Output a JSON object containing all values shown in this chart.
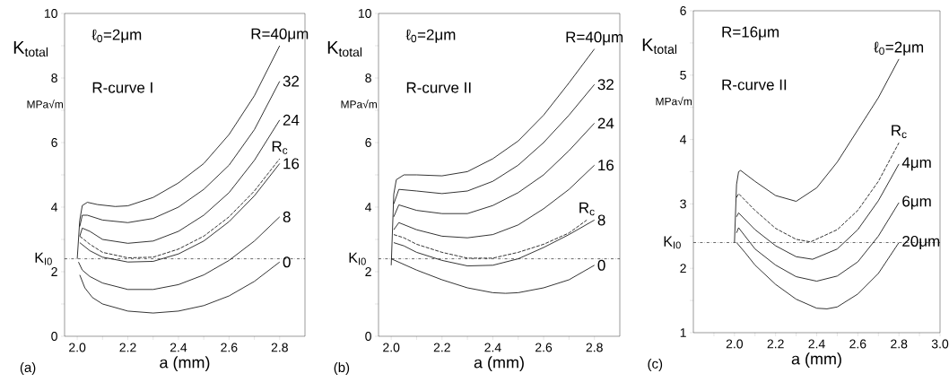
{
  "chart_data": [
    {
      "type": "line",
      "xlabel": "a    (mm)",
      "ylabel": "K$_{total}$",
      "annotations": [
        "ℓ$_{0}$=2μm",
        "R-curve I",
        "MPa√m",
        "(a)"
      ],
      "xlim": [
        1.95,
        2.9
      ],
      "ylim": [
        0,
        10
      ],
      "xticks": [
        {
          "value": 2.0,
          "label": "2.0"
        },
        {
          "value": 2.1,
          "label": null
        },
        {
          "value": 2.2,
          "label": "2.2"
        },
        {
          "value": 2.3,
          "label": null
        },
        {
          "value": 2.4,
          "label": "2.4"
        },
        {
          "value": 2.5,
          "label": null
        },
        {
          "value": 2.6,
          "label": "2.6"
        },
        {
          "value": 2.7,
          "label": null
        },
        {
          "value": 2.8,
          "label": "2.8"
        }
      ],
      "yticks": [
        0,
        {
          "value": 1,
          "label": null
        },
        2,
        {
          "value": 3,
          "label": null
        },
        4,
        {
          "value": 5,
          "label": null
        },
        6,
        {
          "value": 7,
          "label": null
        },
        8,
        {
          "value": 9,
          "label": null
        },
        10
      ],
      "ref_lines": [
        {
          "axis": "y",
          "value": 2.4,
          "label": "K$_{I0}$",
          "line_style": "dashdot",
          "color": "#000000"
        }
      ],
      "series": [
        {
          "name": "R=40μm",
          "color": "#000000",
          "x": [
            2.0,
            2.01,
            2.02,
            2.04,
            2.08,
            2.15,
            2.2,
            2.3,
            2.4,
            2.5,
            2.6,
            2.7,
            2.8
          ],
          "values": [
            2.4,
            3.6,
            4.05,
            4.15,
            4.08,
            4.02,
            4.04,
            4.3,
            4.75,
            5.35,
            6.25,
            7.45,
            9.0
          ]
        },
        {
          "name": "32",
          "color": "#000000",
          "x": [
            2.01,
            2.02,
            2.04,
            2.1,
            2.2,
            2.3,
            2.4,
            2.5,
            2.6,
            2.7,
            2.8
          ],
          "values": [
            3.4,
            3.75,
            3.75,
            3.6,
            3.52,
            3.65,
            4.0,
            4.55,
            5.3,
            6.4,
            7.9
          ]
        },
        {
          "name": "24",
          "color": "#000000",
          "x": [
            2.01,
            2.02,
            2.05,
            2.1,
            2.2,
            2.3,
            2.4,
            2.5,
            2.6,
            2.7,
            2.8
          ],
          "values": [
            3.1,
            3.35,
            3.25,
            3.0,
            2.88,
            2.95,
            3.25,
            3.75,
            4.45,
            5.45,
            6.7
          ]
        },
        {
          "name": "R$_{c}$",
          "color": "#000000",
          "line_style": "dashed",
          "x": [
            2.01,
            2.05,
            2.1,
            2.2,
            2.3,
            2.4,
            2.5,
            2.6,
            2.7,
            2.8
          ],
          "values": [
            3.1,
            2.85,
            2.6,
            2.43,
            2.45,
            2.7,
            3.1,
            3.7,
            4.5,
            5.5
          ]
        },
        {
          "name": "16",
          "color": "#000000",
          "x": [
            2.01,
            2.05,
            2.1,
            2.2,
            2.3,
            2.4,
            2.5,
            2.6,
            2.7,
            2.8
          ],
          "values": [
            2.9,
            2.65,
            2.45,
            2.3,
            2.32,
            2.55,
            2.95,
            3.55,
            4.35,
            5.35
          ]
        },
        {
          "name": "8",
          "color": "#000000",
          "x": [
            2.005,
            2.02,
            2.05,
            2.1,
            2.2,
            2.3,
            2.4,
            2.5,
            2.6,
            2.7,
            2.8
          ],
          "values": [
            2.3,
            2.05,
            1.85,
            1.65,
            1.45,
            1.45,
            1.6,
            1.9,
            2.35,
            2.95,
            3.7
          ]
        },
        {
          "name": "0",
          "color": "#000000",
          "x": [
            2.01,
            2.03,
            2.06,
            2.1,
            2.2,
            2.3,
            2.4,
            2.5,
            2.6,
            2.7,
            2.8
          ],
          "values": [
            1.9,
            1.5,
            1.2,
            1.0,
            0.78,
            0.72,
            0.78,
            0.95,
            1.25,
            1.7,
            2.3
          ]
        }
      ]
    },
    {
      "type": "line",
      "xlabel": "a    (mm)",
      "ylabel": "K$_{total}$",
      "annotations": [
        "ℓ$_{0}$=2μm",
        "R-curve II",
        "MPa√m",
        "(b)"
      ],
      "xlim": [
        1.95,
        2.9
      ],
      "ylim": [
        0,
        10
      ],
      "xticks": [
        {
          "value": 2.0,
          "label": "2.0"
        },
        {
          "value": 2.1,
          "label": null
        },
        {
          "value": 2.2,
          "label": "2.2"
        },
        {
          "value": 2.3,
          "label": null
        },
        {
          "value": 2.4,
          "label": "2.4"
        },
        {
          "value": 2.5,
          "label": null
        },
        {
          "value": 2.6,
          "label": "2.6"
        },
        {
          "value": 2.7,
          "label": null
        },
        {
          "value": 2.8,
          "label": "2.8"
        }
      ],
      "yticks": [
        0,
        {
          "value": 1,
          "label": null
        },
        2,
        {
          "value": 3,
          "label": null
        },
        4,
        {
          "value": 5,
          "label": null
        },
        6,
        {
          "value": 7,
          "label": null
        },
        8,
        {
          "value": 9,
          "label": null
        },
        10
      ],
      "ref_lines": [
        {
          "axis": "y",
          "value": 2.4,
          "label": "K$_{I0}$",
          "line_style": "dashdot",
          "color": "#000000"
        }
      ],
      "series": [
        {
          "name": "R=40μm",
          "color": "#000000",
          "x": [
            2.0,
            2.01,
            2.02,
            2.05,
            2.1,
            2.2,
            2.3,
            2.4,
            2.5,
            2.6,
            2.7,
            2.8
          ],
          "values": [
            2.2,
            4.4,
            4.85,
            5.0,
            5.0,
            4.97,
            5.1,
            5.5,
            6.05,
            6.85,
            7.85,
            8.9
          ]
        },
        {
          "name": "32",
          "color": "#000000",
          "x": [
            2.01,
            2.03,
            2.1,
            2.2,
            2.3,
            2.4,
            2.5,
            2.6,
            2.7,
            2.8
          ],
          "values": [
            4.1,
            4.55,
            4.5,
            4.42,
            4.5,
            4.8,
            5.3,
            6.0,
            6.85,
            7.8
          ]
        },
        {
          "name": "24",
          "color": "#000000",
          "x": [
            2.01,
            2.03,
            2.1,
            2.2,
            2.3,
            2.4,
            2.5,
            2.6,
            2.7,
            2.8
          ],
          "values": [
            3.7,
            4.07,
            3.9,
            3.8,
            3.8,
            4.05,
            4.45,
            5.0,
            5.75,
            6.6
          ]
        },
        {
          "name": "16",
          "color": "#000000",
          "x": [
            2.01,
            2.03,
            2.1,
            2.2,
            2.3,
            2.4,
            2.5,
            2.6,
            2.7,
            2.8
          ],
          "values": [
            3.3,
            3.52,
            3.3,
            3.1,
            3.05,
            3.15,
            3.45,
            3.95,
            4.55,
            5.3
          ]
        },
        {
          "name": "R$_{c}$",
          "color": "#000000",
          "line_style": "dashed",
          "x": [
            2.01,
            2.05,
            2.1,
            2.2,
            2.3,
            2.4,
            2.5,
            2.6,
            2.7,
            2.77
          ],
          "values": [
            3.15,
            3.05,
            2.85,
            2.6,
            2.42,
            2.42,
            2.6,
            2.85,
            3.2,
            3.6
          ]
        },
        {
          "name": "8",
          "color": "#000000",
          "x": [
            2.01,
            2.05,
            2.1,
            2.2,
            2.3,
            2.4,
            2.5,
            2.6,
            2.7,
            2.8
          ],
          "values": [
            2.9,
            2.8,
            2.6,
            2.35,
            2.18,
            2.2,
            2.4,
            2.75,
            3.15,
            3.6
          ]
        },
        {
          "name": "0",
          "color": "#000000",
          "x": [
            2.0,
            2.1,
            2.2,
            2.3,
            2.4,
            2.45,
            2.5,
            2.6,
            2.7,
            2.8
          ],
          "values": [
            2.4,
            2.05,
            1.75,
            1.5,
            1.35,
            1.33,
            1.35,
            1.5,
            1.75,
            2.2
          ]
        }
      ]
    },
    {
      "type": "line",
      "xlabel": "a    (mm)",
      "ylabel": "K$_{total}$",
      "annotations": [
        "R=16μm",
        "R-curve II",
        "MPa√m",
        "(c)"
      ],
      "xlim": [
        1.8,
        3.0
      ],
      "ylim": [
        1,
        6
      ],
      "xticks": [
        {
          "value": 1.9,
          "label": null
        },
        {
          "value": 2.0,
          "label": "2.0"
        },
        {
          "value": 2.1,
          "label": null
        },
        {
          "value": 2.2,
          "label": "2.2"
        },
        {
          "value": 2.3,
          "label": null
        },
        {
          "value": 2.4,
          "label": "2.4"
        },
        {
          "value": 2.5,
          "label": null
        },
        {
          "value": 2.6,
          "label": "2.6"
        },
        {
          "value": 2.7,
          "label": null
        },
        {
          "value": 2.8,
          "label": "2.8"
        },
        {
          "value": 2.9,
          "label": null
        },
        {
          "value": 3.0,
          "label": "3.0"
        }
      ],
      "yticks": [
        1,
        {
          "value": 1.5,
          "label": null
        },
        2,
        {
          "value": 2.5,
          "label": null
        },
        3,
        {
          "value": 3.5,
          "label": null
        },
        4,
        {
          "value": 4.5,
          "label": null
        },
        5,
        {
          "value": 5.5,
          "label": null
        },
        6
      ],
      "ref_lines": [
        {
          "axis": "y",
          "value": 2.4,
          "label": "K$_{I0}$",
          "line_style": "dashdot",
          "color": "#000000"
        }
      ],
      "series": [
        {
          "name": "ℓ$_{0}$=2μm",
          "color": "#000000",
          "x": [
            2.0,
            2.01,
            2.02,
            2.03,
            2.1,
            2.2,
            2.3,
            2.4,
            2.5,
            2.6,
            2.7,
            2.8
          ],
          "values": [
            2.4,
            3.3,
            3.5,
            3.52,
            3.35,
            3.13,
            3.04,
            3.25,
            3.65,
            4.15,
            4.65,
            5.25
          ]
        },
        {
          "name": "R$_{c}$",
          "color": "#000000",
          "line_style": "dashed",
          "x": [
            2.01,
            2.02,
            2.1,
            2.2,
            2.3,
            2.37,
            2.5,
            2.6,
            2.7,
            2.8
          ],
          "values": [
            3.1,
            3.16,
            2.9,
            2.62,
            2.45,
            2.41,
            2.6,
            2.9,
            3.35,
            3.95
          ]
        },
        {
          "name": "4μm",
          "color": "#000000",
          "x": [
            2.01,
            2.02,
            2.1,
            2.2,
            2.3,
            2.38,
            2.5,
            2.6,
            2.7,
            2.8
          ],
          "values": [
            2.8,
            2.86,
            2.6,
            2.35,
            2.18,
            2.14,
            2.3,
            2.6,
            3.05,
            3.62
          ]
        },
        {
          "name": "6μm",
          "color": "#000000",
          "x": [
            2.01,
            2.02,
            2.1,
            2.2,
            2.3,
            2.4,
            2.5,
            2.6,
            2.7,
            2.8
          ],
          "values": [
            2.55,
            2.63,
            2.3,
            2.05,
            1.87,
            1.8,
            1.88,
            2.1,
            2.5,
            3.02
          ]
        },
        {
          "name": "20μm",
          "color": "#000000",
          "x": [
            2.01,
            2.05,
            2.1,
            2.2,
            2.3,
            2.4,
            2.45,
            2.5,
            2.6,
            2.7,
            2.8
          ],
          "values": [
            2.4,
            2.25,
            2.05,
            1.75,
            1.52,
            1.38,
            1.37,
            1.4,
            1.6,
            1.92,
            2.4
          ]
        }
      ]
    }
  ]
}
